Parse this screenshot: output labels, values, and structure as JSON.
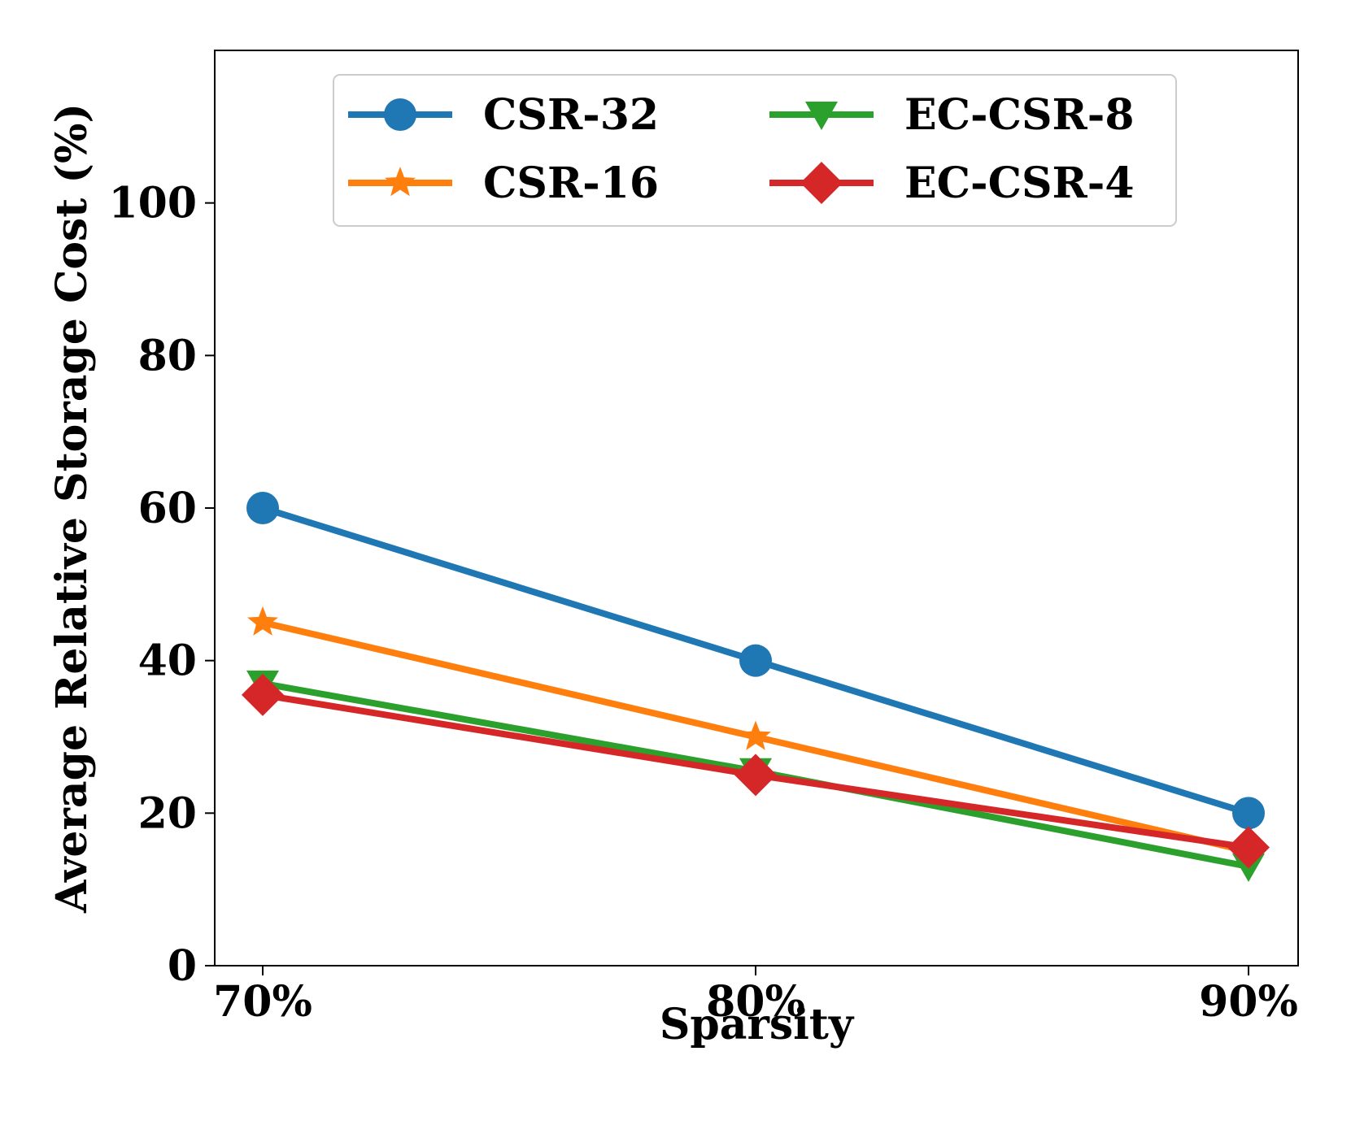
{
  "chart_data": {
    "type": "line",
    "title": "",
    "xlabel": "Sparsity",
    "ylabel": "Average Relative Storage Cost (%)",
    "categories": [
      "70%",
      "80%",
      "90%"
    ],
    "ylim": [
      0,
      120
    ],
    "yticks": [
      0,
      20,
      40,
      60,
      80,
      100
    ],
    "grid": false,
    "legend_position": "top-center",
    "series": [
      {
        "name": "CSR-32",
        "color": "#1f77b4",
        "marker": "circle",
        "values": [
          60,
          40,
          20
        ]
      },
      {
        "name": "CSR-16",
        "color": "#ff7f0e",
        "marker": "star",
        "values": [
          45,
          30,
          15
        ]
      },
      {
        "name": "EC-CSR-8",
        "color": "#2ca02c",
        "marker": "triangle-down",
        "values": [
          37,
          25.5,
          13
        ]
      },
      {
        "name": "EC-CSR-4",
        "color": "#d62728",
        "marker": "diamond",
        "values": [
          35.5,
          25,
          15.5
        ]
      }
    ]
  }
}
